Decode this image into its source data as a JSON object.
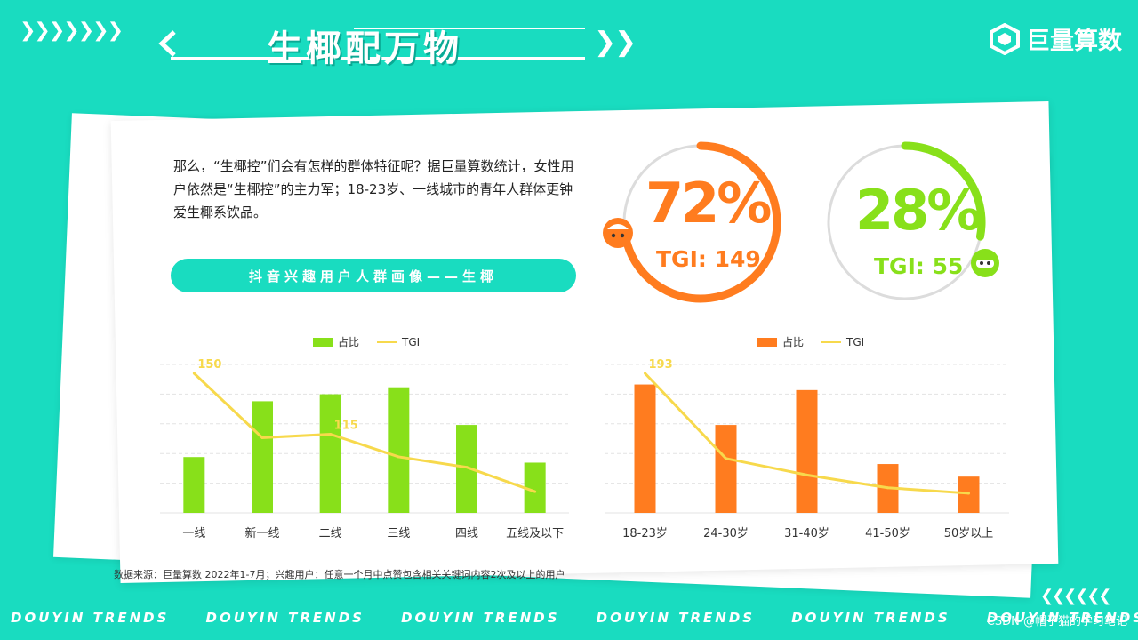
{
  "header": {
    "left_chevrons": "❯❯❯❯❯❯❯",
    "title": "生椰配万物",
    "right_chevrons": "❯❯",
    "logo_text": "巨量算数"
  },
  "intro_text": "那么，“生椰控”们会有怎样的群体特征呢？据巨量算数统计，女性用户依然是“生椰控”的主力军；18-23岁、一线城市的青年人群体更钟爱生椰系饮品。",
  "section_pill": "抖音兴趣用户人群画像——生椰",
  "rings": [
    {
      "percent": "72%",
      "tgi": "TGI: 149",
      "color": "#ff7c1f",
      "icon": "female-face-icon",
      "fill_fraction": 0.72
    },
    {
      "percent": "28%",
      "tgi": "TGI: 55",
      "color": "#88e01a",
      "icon": "male-face-icon",
      "fill_fraction": 0.28
    }
  ],
  "legend": {
    "share": "占比",
    "tgi": "TGI"
  },
  "colors": {
    "teal": "#19dcc0",
    "green": "#88e01a",
    "orange": "#ff7c1f",
    "tgi_line": "#f7d94c"
  },
  "chart_data": [
    {
      "type": "bar",
      "categories": [
        "一线",
        "新一线",
        "二线",
        "三线",
        "四线",
        "五线及以下"
      ],
      "series": [
        {
          "name": "占比",
          "values": [
            0.4,
            0.8,
            0.85,
            0.9,
            0.63,
            0.36
          ]
        },
        {
          "name": "TGI",
          "type": "line",
          "values": [
            150,
            113,
            115,
            102,
            96,
            82
          ]
        }
      ],
      "data_labels": [
        {
          "series": "TGI",
          "index": 0,
          "text": "150"
        },
        {
          "series": "TGI",
          "index": 2,
          "text": "115"
        }
      ],
      "grid": true,
      "legend": "top-center"
    },
    {
      "type": "bar",
      "categories": [
        "18-23岁",
        "24-30岁",
        "31-40岁",
        "41-50岁",
        "50岁以上"
      ],
      "series": [
        {
          "name": "占比",
          "values": [
            0.92,
            0.63,
            0.88,
            0.35,
            0.26
          ]
        },
        {
          "name": "TGI",
          "type": "line",
          "values": [
            193,
            100,
            82,
            68,
            62
          ]
        }
      ],
      "data_labels": [
        {
          "series": "TGI",
          "index": 0,
          "text": "193"
        }
      ],
      "grid": true,
      "legend": "top-center"
    }
  ],
  "source_note": "数据来源：巨量算数 2022年1-7月；兴趣用户：任意一个月中点赞包含相关关键词内容2次及以上的用户",
  "footer": {
    "strip_text": "DOUYIN TRENDS     DOUYIN TRENDS     DOUYIN TRENDS     DOUYIN TRENDS     DOUYIN TRENDS     DOUYIN TRENDS",
    "chevrons": "❮❮❮❮❮❮",
    "watermark": "CSDN @帽子猫的学习笔记"
  }
}
